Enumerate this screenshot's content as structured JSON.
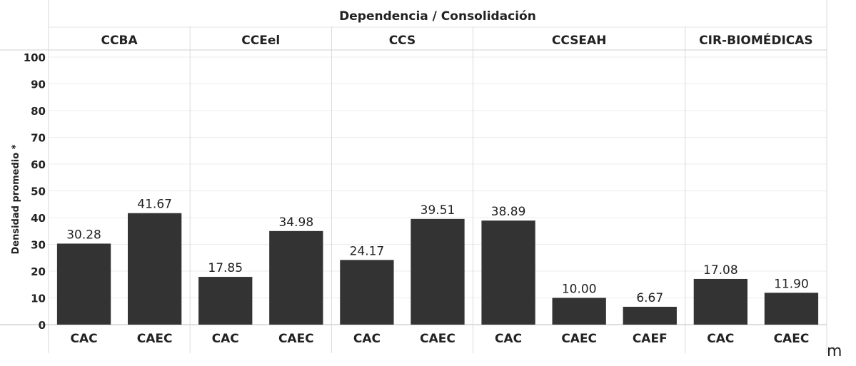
{
  "chart_data": {
    "type": "bar",
    "title": "Dependencia / Consolidación",
    "ylabel": "Densidad promedio *",
    "xlabel": "",
    "ylim": [
      0,
      100
    ],
    "yticks": [
      0,
      10,
      20,
      30,
      40,
      50,
      60,
      70,
      80,
      90,
      100
    ],
    "bar_color": "#333333",
    "groups": [
      {
        "name": "CCBA",
        "bars": [
          {
            "category": "CAC",
            "value": 30.28,
            "label": "30.28"
          },
          {
            "category": "CAEC",
            "value": 41.67,
            "label": "41.67"
          }
        ]
      },
      {
        "name": "CCEel",
        "bars": [
          {
            "category": "CAC",
            "value": 17.85,
            "label": "17.85"
          },
          {
            "category": "CAEC",
            "value": 34.98,
            "label": "34.98"
          }
        ]
      },
      {
        "name": "CCS",
        "bars": [
          {
            "category": "CAC",
            "value": 24.17,
            "label": "24.17"
          },
          {
            "category": "CAEC",
            "value": 39.51,
            "label": "39.51"
          }
        ]
      },
      {
        "name": "CCSEAH",
        "bars": [
          {
            "category": "CAC",
            "value": 38.89,
            "label": "38.89"
          },
          {
            "category": "CAEC",
            "value": 10.0,
            "label": "10.00"
          },
          {
            "category": "CAEF",
            "value": 6.67,
            "label": "6.67"
          }
        ]
      },
      {
        "name": "CIR-BIOMÉDICAS",
        "bars": [
          {
            "category": "CAC",
            "value": 17.08,
            "label": "17.08"
          },
          {
            "category": "CAEC",
            "value": 11.9,
            "label": "11.90"
          }
        ]
      }
    ]
  },
  "stray_mark": "m"
}
